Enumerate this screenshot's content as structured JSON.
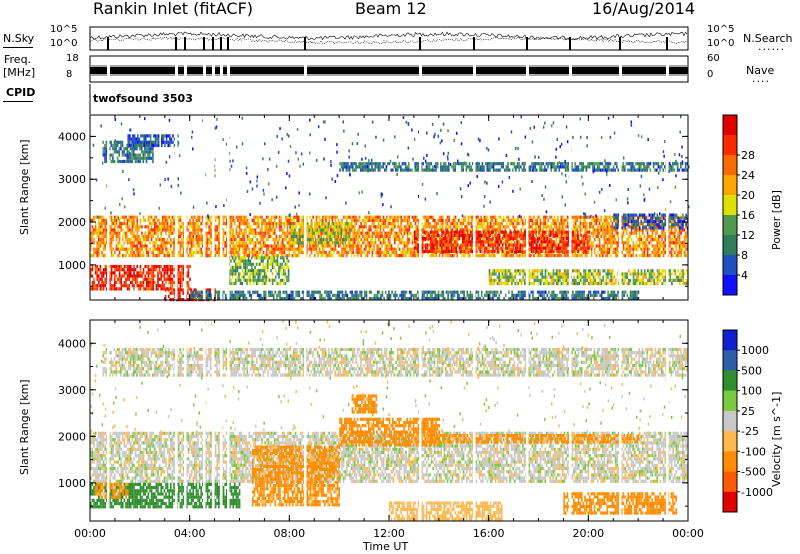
{
  "header": {
    "title": "Rankin Inlet (fitACF)",
    "beam": "Beam 12",
    "date": "16/Aug/2014"
  },
  "top_panels": {
    "nsky_label": "N.Sky",
    "nsearch_label": "N.Search",
    "freq_label_line1": "Freq.",
    "freq_label_line2": "[MHz]",
    "nave_label": "Nave",
    "cpid_label": "CPID",
    "cpid_value": "twofsound 3503",
    "dots": "......",
    "dots_short": "....",
    "noise_ticks": [
      "10^5",
      "10^0"
    ],
    "freq_ticks": [
      "18",
      "8"
    ],
    "nave_ticks": [
      "60",
      "0"
    ]
  },
  "colors": {
    "power_scale": [
      "#1010ff",
      "#2050c0",
      "#2e7d5b",
      "#4f9a50",
      "#e0e000",
      "#ffa500",
      "#ff6a00",
      "#ff2a00",
      "#e00000"
    ],
    "velocity_scale": [
      "#e00000",
      "#ff5a00",
      "#ff8c00",
      "#ffb84d",
      "#c8c8c8",
      "#7ac943",
      "#2f8f2f",
      "#2a5fa8",
      "#1020d0"
    ],
    "ground_scatter": "#bebebe"
  },
  "chart_data": [
    {
      "type": "heatmap",
      "title": "Power",
      "xlabel": "Time UT",
      "ylabel": "Slant Range [km]",
      "x_ticks": [
        "00:00",
        "04:00",
        "08:00",
        "12:00",
        "16:00",
        "20:00",
        "00:00"
      ],
      "x_range_hours": [
        0,
        24
      ],
      "y_ticks": [
        1000,
        2000,
        3000,
        4000
      ],
      "ylim": [
        180,
        4500
      ],
      "colorbar": {
        "label": "Power [dB]",
        "ticks": [
          4,
          8,
          12,
          16,
          20,
          24,
          28
        ],
        "range": [
          0,
          30
        ]
      },
      "regions": [
        {
          "t0": 0.0,
          "t1": 24.0,
          "r0": 1250,
          "r1": 2150,
          "level": 20
        },
        {
          "t0": 0.0,
          "t1": 4.0,
          "r0": 450,
          "r1": 1000,
          "level": 26
        },
        {
          "t0": 0.5,
          "t1": 2.5,
          "r0": 3400,
          "r1": 3900,
          "level": 8
        },
        {
          "t0": 1.5,
          "t1": 3.5,
          "r0": 3800,
          "r1": 4050,
          "level": 6
        },
        {
          "t0": 3.0,
          "t1": 5.0,
          "r0": 200,
          "r1": 450,
          "level": 28
        },
        {
          "t0": 5.5,
          "t1": 8.0,
          "r0": 600,
          "r1": 1200,
          "level": 12
        },
        {
          "t0": 8.0,
          "t1": 10.5,
          "r0": 1500,
          "r1": 2000,
          "level": 14
        },
        {
          "t0": 10.0,
          "t1": 24.0,
          "r0": 3200,
          "r1": 3400,
          "level": 8
        },
        {
          "t0": 13.0,
          "t1": 20.0,
          "r0": 1300,
          "r1": 1800,
          "level": 26
        },
        {
          "t0": 16.0,
          "t1": 24.0,
          "r0": 600,
          "r1": 900,
          "level": 14
        },
        {
          "t0": 4.0,
          "t1": 22.0,
          "r0": 220,
          "r1": 400,
          "level": 8
        },
        {
          "t0": 21.0,
          "t1": 24.0,
          "r0": 1900,
          "r1": 2200,
          "level": 6
        }
      ]
    },
    {
      "type": "heatmap",
      "title": "Velocity",
      "xlabel": "Time UT",
      "ylabel": "Slant Range [km]",
      "x_ticks": [
        "00:00",
        "04:00",
        "08:00",
        "12:00",
        "16:00",
        "20:00",
        "00:00"
      ],
      "x_range_hours": [
        0,
        24
      ],
      "y_ticks": [
        1000,
        2000,
        3000,
        4000
      ],
      "ylim": [
        180,
        4500
      ],
      "colorbar": {
        "label": "Velocity [m s^-1]",
        "ticks": [
          1000,
          500,
          100,
          25,
          -25,
          -100,
          -500,
          -1000
        ],
        "range": [
          -1200,
          1200
        ]
      },
      "regions": [
        {
          "t0": 0.0,
          "t1": 24.0,
          "r0": 1000,
          "r1": 2100,
          "level": 0
        },
        {
          "t0": 0.0,
          "t1": 6.0,
          "r0": 450,
          "r1": 1000,
          "level": 200
        },
        {
          "t0": 0.2,
          "t1": 1.5,
          "r0": 700,
          "r1": 1000,
          "level": -150
        },
        {
          "t0": 6.5,
          "t1": 10.0,
          "r0": 500,
          "r1": 1800,
          "level": -150
        },
        {
          "t0": 10.0,
          "t1": 14.0,
          "r0": 1800,
          "r1": 2400,
          "level": -200
        },
        {
          "t0": 10.5,
          "t1": 11.5,
          "r0": 2500,
          "r1": 2900,
          "level": -200
        },
        {
          "t0": 12.0,
          "t1": 16.5,
          "r0": 200,
          "r1": 600,
          "level": -60
        },
        {
          "t0": 19.0,
          "t1": 23.5,
          "r0": 350,
          "r1": 800,
          "level": -300
        },
        {
          "t0": 0.5,
          "t1": 24.0,
          "r0": 3300,
          "r1": 3900,
          "level": 0
        },
        {
          "t0": 13.0,
          "t1": 22.0,
          "r0": 1850,
          "r1": 2050,
          "level": -150
        }
      ]
    }
  ]
}
